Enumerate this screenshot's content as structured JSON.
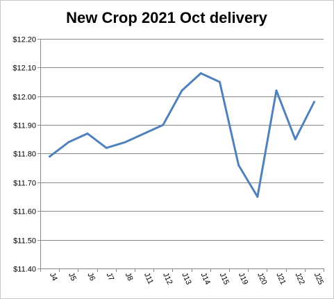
{
  "chart_data": {
    "type": "line",
    "title": "New Crop 2021 Oct delivery",
    "categories": [
      "J4",
      "J5",
      "J6",
      "J7",
      "J8",
      "J11",
      "J12",
      "J13",
      "J14",
      "J15",
      "J19",
      "J20",
      "J21",
      "J22",
      "J25"
    ],
    "series": [
      {
        "values": [
          11.79,
          11.84,
          11.87,
          11.82,
          11.84,
          11.87,
          11.9,
          12.02,
          12.08,
          12.05,
          11.76,
          11.65,
          12.02,
          11.85,
          11.98
        ]
      }
    ],
    "ylim": [
      11.4,
      12.2
    ],
    "yticks": [
      "$11.40",
      "$11.50",
      "$11.60",
      "$11.70",
      "$11.80",
      "$11.90",
      "$12.00",
      "$12.10",
      "$12.20"
    ],
    "grid": true,
    "line_color": "#4F81BD",
    "grid_color": "#868686"
  }
}
